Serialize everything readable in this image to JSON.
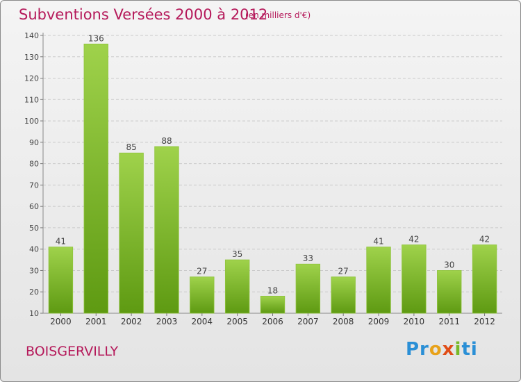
{
  "title": "Subventions Versées 2000 à 2012",
  "subtitle": "(en milliers d'€)",
  "commune": "BOISGERVILLY",
  "logo": {
    "p1": "Pr",
    "p2": "o",
    "p3": "x",
    "p4": "i",
    "p5": "ti"
  },
  "colors": {
    "accent": "#b5195a",
    "bar_light": "#9fd24b",
    "bar_dark": "#5e9a12"
  },
  "chart_data": {
    "type": "bar",
    "categories": [
      "2000",
      "2001",
      "2002",
      "2003",
      "2004",
      "2005",
      "2006",
      "2007",
      "2008",
      "2009",
      "2010",
      "2011",
      "2012"
    ],
    "values": [
      41,
      136,
      85,
      88,
      27,
      35,
      18,
      33,
      27,
      41,
      42,
      30,
      42
    ],
    "title": "Subventions Versées 2000 à 2012",
    "xlabel": "",
    "ylabel": "",
    "ylim": [
      10,
      140
    ],
    "yticks": [
      10,
      20,
      30,
      40,
      50,
      60,
      70,
      80,
      90,
      100,
      110,
      120,
      130,
      140
    ],
    "grid": true,
    "data_labels": true
  }
}
